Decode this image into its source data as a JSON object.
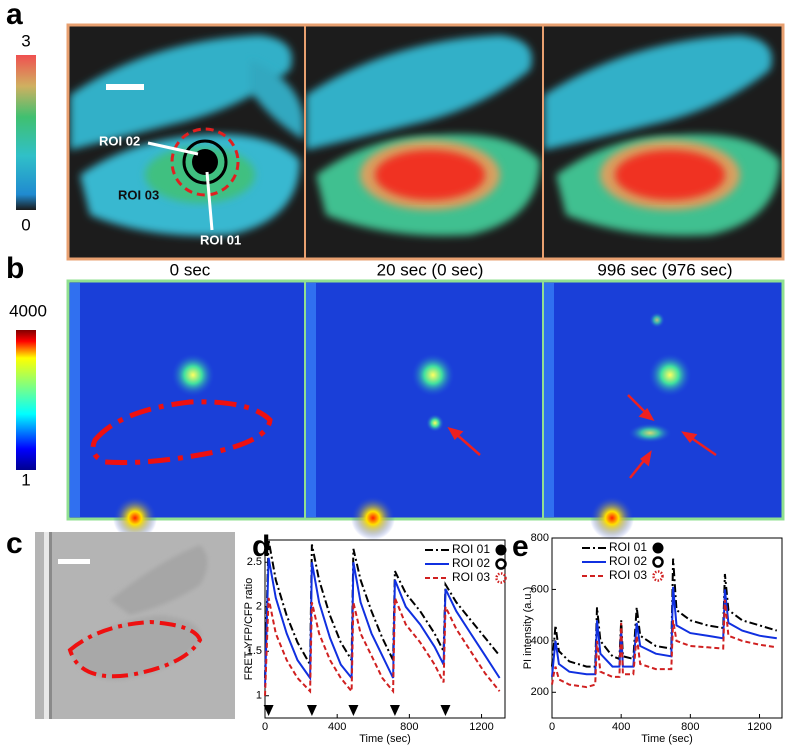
{
  "panels": {
    "a": {
      "label": "a",
      "colorbar_max": "3",
      "colorbar_min": "0",
      "annotations": [
        "ROI 02",
        "ROI 03",
        "ROI 01"
      ]
    },
    "time_labels": [
      "0 sec",
      "20 sec (0 sec)",
      "996 sec (976 sec)"
    ],
    "b": {
      "label": "b",
      "colorbar_max": "4000",
      "colorbar_min": "1"
    },
    "c": {
      "label": "c"
    }
  },
  "chart_data": [
    {
      "type": "line",
      "panel_label": "d",
      "xlabel": "Time (sec)",
      "ylabel": "FRET-YFP/CFP ratio",
      "x": [
        0,
        20,
        60,
        120,
        180,
        250,
        260,
        300,
        360,
        420,
        480,
        490,
        530,
        590,
        650,
        710,
        720,
        780,
        860,
        940,
        990,
        1000,
        1060,
        1140,
        1220,
        1300
      ],
      "series": [
        {
          "name": "ROI 01",
          "color": "#000000",
          "dash": "dash-dot",
          "marker": "filled-circle",
          "values": [
            1.2,
            2.75,
            2.3,
            1.9,
            1.6,
            1.35,
            2.7,
            2.3,
            1.9,
            1.6,
            1.4,
            2.65,
            2.3,
            1.95,
            1.65,
            1.4,
            2.4,
            2.15,
            1.95,
            1.7,
            1.5,
            2.25,
            2.05,
            1.85,
            1.65,
            1.45
          ]
        },
        {
          "name": "ROI 02",
          "color": "#1030e0",
          "dash": "solid",
          "marker": "open-circle",
          "values": [
            1.1,
            2.55,
            2.1,
            1.7,
            1.4,
            1.2,
            2.5,
            2.05,
            1.65,
            1.35,
            1.2,
            2.5,
            2.05,
            1.7,
            1.45,
            1.2,
            2.3,
            2.0,
            1.8,
            1.55,
            1.35,
            2.2,
            1.95,
            1.7,
            1.45,
            1.2
          ]
        },
        {
          "name": "ROI 03",
          "color": "#d02020",
          "dash": "dashed",
          "marker": "dotted-circle",
          "values": [
            1.0,
            2.1,
            1.7,
            1.4,
            1.2,
            1.05,
            2.05,
            1.7,
            1.4,
            1.2,
            1.05,
            2.05,
            1.7,
            1.45,
            1.2,
            1.05,
            2.1,
            1.8,
            1.6,
            1.35,
            1.15,
            2.0,
            1.75,
            1.5,
            1.25,
            1.05
          ]
        }
      ],
      "stimuli_x": [
        20,
        260,
        490,
        720,
        1000
      ],
      "xlim": [
        0,
        1330
      ],
      "xticks": [
        0,
        400,
        800,
        1200
      ],
      "ylim": [
        0.75,
        2.75
      ],
      "yticks": [
        1,
        1.5,
        2,
        2.5
      ]
    },
    {
      "type": "line",
      "panel_label": "e",
      "xlabel": "Time (sec)",
      "ylabel": "PI intensity (a.u.)",
      "x": [
        0,
        10,
        20,
        40,
        100,
        200,
        250,
        260,
        280,
        350,
        390,
        400,
        410,
        470,
        490,
        510,
        600,
        690,
        700,
        720,
        800,
        900,
        990,
        1000,
        1020,
        1100,
        1200,
        1300
      ],
      "series": [
        {
          "name": "ROI 01",
          "color": "#000000",
          "dash": "dash-dot",
          "marker": "filled-circle",
          "values": [
            300,
            380,
            460,
            360,
            320,
            300,
            300,
            530,
            400,
            340,
            330,
            480,
            340,
            330,
            530,
            420,
            380,
            370,
            720,
            520,
            480,
            460,
            450,
            660,
            520,
            480,
            460,
            440
          ]
        },
        {
          "name": "ROI 02",
          "color": "#1030e0",
          "dash": "solid",
          "marker": "open-circle",
          "values": [
            260,
            330,
            400,
            310,
            280,
            270,
            270,
            480,
            350,
            300,
            300,
            440,
            300,
            300,
            470,
            380,
            350,
            340,
            610,
            460,
            430,
            420,
            410,
            600,
            470,
            440,
            420,
            410
          ]
        },
        {
          "name": "ROI 03",
          "color": "#d02020",
          "dash": "dashed",
          "marker": "dotted-circle",
          "values": [
            230,
            270,
            300,
            250,
            230,
            220,
            230,
            400,
            280,
            260,
            260,
            470,
            270,
            270,
            420,
            310,
            290,
            290,
            480,
            400,
            380,
            375,
            370,
            560,
            420,
            400,
            385,
            375
          ]
        }
      ],
      "xlim": [
        0,
        1330
      ],
      "xticks": [
        0,
        400,
        800,
        1200
      ],
      "ylim": [
        100,
        800
      ],
      "yticks": [
        200,
        400,
        600,
        800
      ]
    }
  ]
}
